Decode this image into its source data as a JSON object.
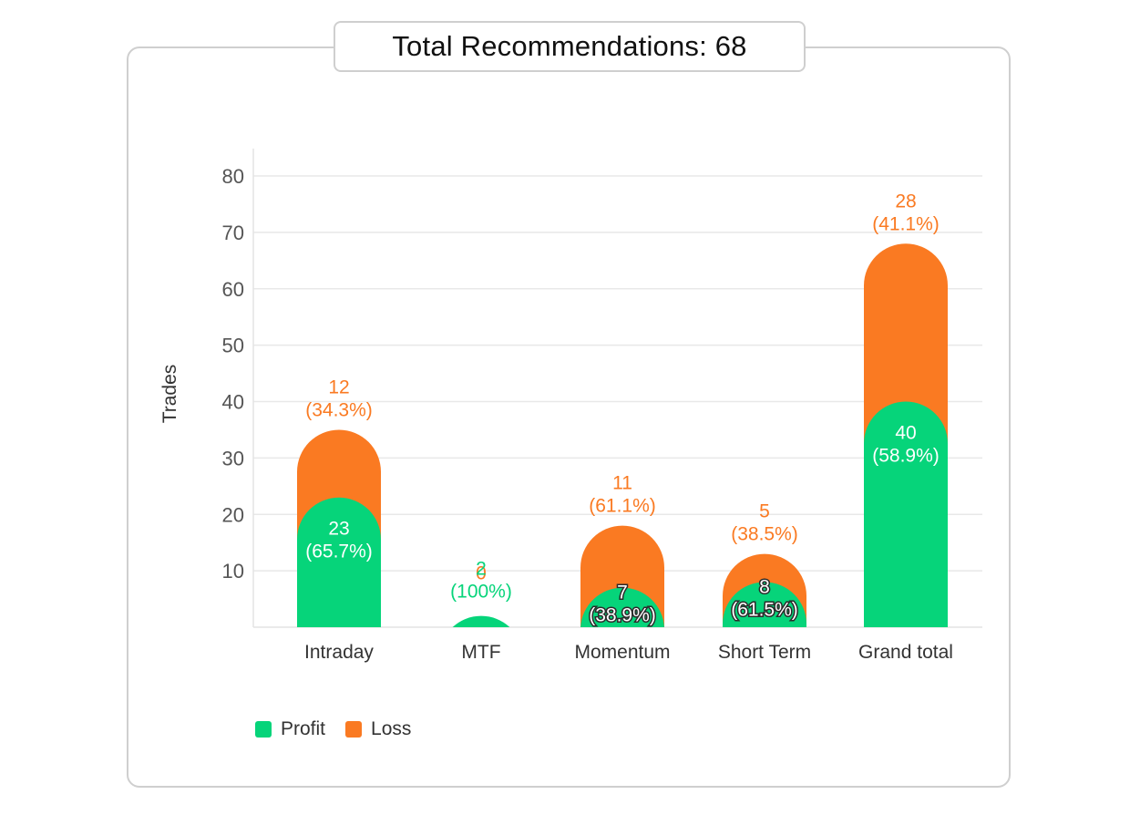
{
  "header": {
    "title": "Total Recommendations: 68"
  },
  "legend": {
    "items": [
      {
        "label": "Profit",
        "color": "#06d47a"
      },
      {
        "label": "Loss",
        "color": "#fa7a22"
      }
    ]
  },
  "chart_data": {
    "type": "bar",
    "stacked": true,
    "title": "Total Recommendations: 68",
    "xlabel": "",
    "ylabel": "Trades",
    "ylim": [
      0,
      80
    ],
    "yticks": [
      10,
      20,
      30,
      40,
      50,
      60,
      70,
      80
    ],
    "grid": true,
    "legend_position": "bottom-left",
    "categories": [
      "Intraday",
      "MTF",
      "Momentum",
      "Short Term",
      "Grand total"
    ],
    "series": [
      {
        "name": "Profit",
        "color": "#06d47a",
        "values": [
          23,
          2,
          7,
          8,
          40
        ],
        "labels": [
          "23",
          "2",
          "7",
          "8",
          "40"
        ],
        "percent_labels": [
          "(65.7%)",
          "(100%)",
          "(38.9%)",
          "(61.5%)",
          "(58.9%)"
        ]
      },
      {
        "name": "Loss",
        "color": "#fa7a22",
        "values": [
          12,
          0,
          11,
          5,
          28
        ],
        "labels": [
          "12",
          "0",
          "11",
          "5",
          "28"
        ],
        "percent_labels": [
          "(34.3%)",
          "",
          "(61.1%)",
          "(38.5%)",
          "(41.1%)"
        ]
      }
    ]
  }
}
